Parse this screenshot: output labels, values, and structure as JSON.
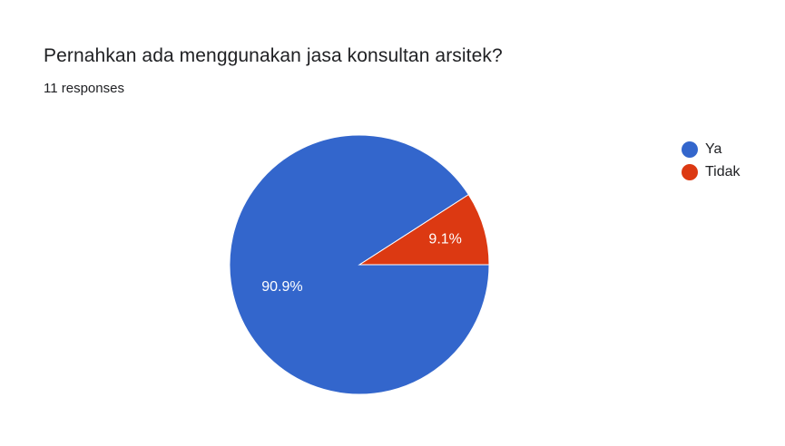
{
  "question": {
    "title": "Pernahkan ada menggunakan jasa konsultan arsitek?",
    "responses": "11 responses"
  },
  "chart_data": {
    "type": "pie",
    "categories": [
      "Ya",
      "Tidak"
    ],
    "values": [
      90.9,
      9.1
    ],
    "data_labels": [
      "90.9%",
      "9.1%"
    ],
    "colors": [
      "#3366cc",
      "#dc3912"
    ],
    "legend": "right"
  }
}
